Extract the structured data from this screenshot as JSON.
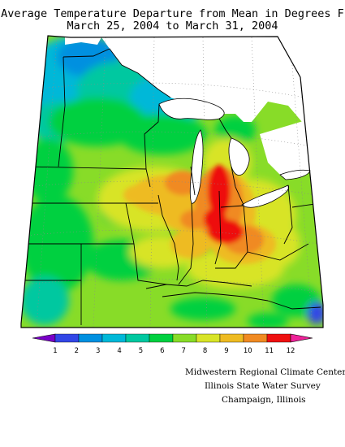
{
  "title": {
    "line1": "Average Temperature Departure from Mean in Degrees F",
    "line2": "March 25, 2004 to March 31, 2004"
  },
  "legend": {
    "labels": [
      "1",
      "2",
      "3",
      "4",
      "5",
      "6",
      "7",
      "8",
      "9",
      "10",
      "11",
      "12"
    ],
    "colors": [
      "#7a00c8",
      "#3246e6",
      "#0090e0",
      "#00b8d8",
      "#00c8a0",
      "#00d040",
      "#88dc28",
      "#d8e428",
      "#eebb22",
      "#f08a22",
      "#ee1010",
      "#ee2299"
    ]
  },
  "credits": {
    "line1": "Midwestern Regional Climate Center",
    "line2": "Illinois State Water Survey",
    "line3": "Champaign, Illinois"
  },
  "colors": {
    "lake": "#ffffff",
    "canada": "#ffffff",
    "border": "#000000",
    "grid": "#888888"
  }
}
